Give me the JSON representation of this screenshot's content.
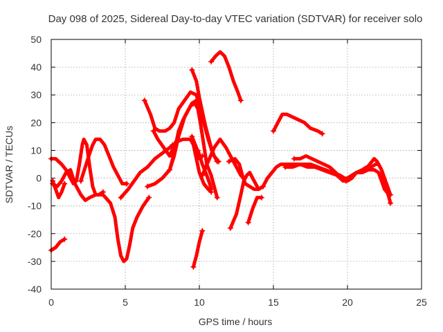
{
  "chart_data": {
    "type": "line",
    "title": "Day 098 of 2025, Sidereal Day-to-day VTEC variation (SDTVAR) for receiver solo",
    "xlabel": "GPS time / hours",
    "ylabel": "SDTVAR / TECUs",
    "xlim": [
      0,
      25
    ],
    "ylim": [
      -40,
      50
    ],
    "xticks": [
      "0",
      "5",
      "10",
      "15",
      "20",
      "25"
    ],
    "yticks": [
      "-40",
      "-30",
      "-20",
      "-10",
      "0",
      "10",
      "20",
      "30",
      "40",
      "50"
    ],
    "grid": true,
    "marker": "+",
    "color": "#ff0000",
    "series": [
      {
        "name": "s1",
        "points": [
          [
            0.0,
            7
          ],
          [
            0.3,
            7
          ],
          [
            0.7,
            5
          ],
          [
            1.0,
            3
          ],
          [
            1.3,
            0
          ],
          [
            1.5,
            -2
          ],
          [
            1.7,
            -1
          ],
          [
            1.9,
            5
          ],
          [
            2.1,
            12
          ],
          [
            2.2,
            14
          ],
          [
            2.4,
            12
          ],
          [
            2.6,
            4
          ],
          [
            2.8,
            -3
          ],
          [
            3.0,
            -6
          ],
          [
            3.2,
            -6
          ],
          [
            3.5,
            -5
          ]
        ]
      },
      {
        "name": "s2",
        "points": [
          [
            0.1,
            -2
          ],
          [
            0.4,
            -3
          ],
          [
            0.7,
            -1
          ],
          [
            1.0,
            2
          ],
          [
            1.3,
            3
          ],
          [
            1.6,
            -2
          ],
          [
            2.0,
            -6
          ],
          [
            2.3,
            -8
          ],
          [
            2.6,
            -7
          ],
          [
            3.0,
            -6
          ],
          [
            3.5,
            -6
          ],
          [
            4.0,
            -9
          ],
          [
            4.3,
            -14
          ],
          [
            4.5,
            -22
          ],
          [
            4.7,
            -28
          ],
          [
            4.9,
            -30
          ],
          [
            5.1,
            -29
          ],
          [
            5.3,
            -24
          ],
          [
            5.5,
            -18
          ],
          [
            5.8,
            -14
          ],
          [
            6.2,
            -10
          ],
          [
            6.6,
            -7
          ]
        ]
      },
      {
        "name": "s3",
        "points": [
          [
            0.0,
            -26
          ],
          [
            0.3,
            -25
          ],
          [
            0.6,
            -23
          ],
          [
            0.9,
            -22
          ]
        ]
      },
      {
        "name": "s4",
        "points": [
          [
            0.1,
            -1
          ],
          [
            0.3,
            -4
          ],
          [
            0.5,
            -7
          ],
          [
            0.7,
            -5
          ],
          [
            0.9,
            -2
          ]
        ]
      },
      {
        "name": "s5",
        "points": [
          [
            2.0,
            -1
          ],
          [
            2.3,
            4
          ],
          [
            2.6,
            9
          ],
          [
            2.8,
            12
          ],
          [
            3.0,
            14
          ],
          [
            3.3,
            14
          ],
          [
            3.6,
            12
          ],
          [
            3.9,
            8
          ],
          [
            4.2,
            4
          ],
          [
            4.5,
            1
          ],
          [
            4.8,
            -2
          ],
          [
            5.1,
            -2
          ]
        ]
      },
      {
        "name": "s6",
        "points": [
          [
            4.7,
            -7
          ],
          [
            5.2,
            -4
          ],
          [
            5.6,
            -1
          ],
          [
            6.0,
            2
          ],
          [
            6.5,
            4
          ],
          [
            7.0,
            7
          ],
          [
            7.5,
            9
          ],
          [
            8.0,
            11
          ],
          [
            8.2,
            12
          ]
        ]
      },
      {
        "name": "s7",
        "points": [
          [
            6.3,
            28
          ],
          [
            6.7,
            23
          ],
          [
            7.0,
            18
          ],
          [
            7.3,
            17
          ],
          [
            7.7,
            17
          ],
          [
            8.0,
            18
          ],
          [
            8.3,
            20
          ],
          [
            8.6,
            25
          ],
          [
            9.0,
            28
          ],
          [
            9.4,
            31
          ],
          [
            9.8,
            30
          ],
          [
            10.0,
            26
          ],
          [
            10.3,
            20
          ],
          [
            10.6,
            14
          ],
          [
            10.9,
            9
          ],
          [
            11.2,
            6
          ]
        ]
      },
      {
        "name": "s8",
        "points": [
          [
            6.9,
            17
          ],
          [
            7.2,
            14
          ],
          [
            7.6,
            11
          ],
          [
            8.0,
            8
          ],
          [
            8.4,
            13
          ],
          [
            8.9,
            14
          ],
          [
            9.4,
            14
          ],
          [
            9.6,
            12
          ],
          [
            9.8,
            7
          ],
          [
            10.0,
            2
          ],
          [
            10.3,
            -2
          ],
          [
            10.6,
            -4
          ],
          [
            10.8,
            -5
          ]
        ]
      },
      {
        "name": "s9",
        "points": [
          [
            6.5,
            -3
          ],
          [
            7.0,
            -2
          ],
          [
            7.5,
            0
          ],
          [
            8.0,
            3
          ],
          [
            8.3,
            8
          ],
          [
            8.6,
            15
          ],
          [
            9.0,
            22
          ],
          [
            9.4,
            26
          ],
          [
            9.7,
            27
          ],
          [
            9.9,
            25
          ],
          [
            10.1,
            19
          ],
          [
            10.3,
            12
          ],
          [
            10.5,
            5
          ],
          [
            10.8,
            1
          ],
          [
            11.0,
            -3
          ],
          [
            11.2,
            -7
          ]
        ]
      },
      {
        "name": "s10",
        "points": [
          [
            9.5,
            39
          ],
          [
            9.8,
            35
          ],
          [
            10.0,
            29
          ],
          [
            10.2,
            24
          ],
          [
            10.4,
            19
          ],
          [
            10.6,
            15
          ],
          [
            10.8,
            11
          ],
          [
            11.0,
            8
          ],
          [
            11.3,
            6
          ]
        ]
      },
      {
        "name": "s11",
        "points": [
          [
            8.0,
            3
          ],
          [
            8.2,
            7
          ],
          [
            8.4,
            12
          ],
          [
            8.6,
            17
          ],
          [
            8.9,
            21
          ],
          [
            9.2,
            24
          ],
          [
            9.5,
            27
          ],
          [
            9.8,
            28
          ]
        ]
      },
      {
        "name": "s12",
        "points": [
          [
            9.9,
            10
          ],
          [
            10.2,
            5
          ],
          [
            10.5,
            1
          ],
          [
            10.7,
            -2
          ],
          [
            10.8,
            -4
          ]
        ]
      },
      {
        "name": "s13",
        "points": [
          [
            10.8,
            42
          ],
          [
            11.1,
            44
          ],
          [
            11.4,
            45.5
          ],
          [
            11.7,
            44
          ],
          [
            12.0,
            40
          ],
          [
            12.3,
            35
          ],
          [
            12.6,
            31
          ],
          [
            12.8,
            28
          ]
        ]
      },
      {
        "name": "s14",
        "points": [
          [
            9.6,
            -32
          ],
          [
            9.8,
            -28
          ],
          [
            10.0,
            -23
          ],
          [
            10.2,
            -19
          ]
        ]
      },
      {
        "name": "s15",
        "points": [
          [
            9.5,
            15
          ],
          [
            9.8,
            11
          ],
          [
            10.0,
            7
          ],
          [
            10.2,
            8
          ]
        ]
      },
      {
        "name": "s16",
        "points": [
          [
            10.2,
            1
          ],
          [
            10.6,
            6
          ],
          [
            11.0,
            11
          ],
          [
            11.4,
            14
          ],
          [
            11.8,
            11
          ],
          [
            12.2,
            7
          ],
          [
            12.5,
            4
          ],
          [
            12.8,
            1
          ],
          [
            13.0,
            0
          ]
        ]
      },
      {
        "name": "s17",
        "points": [
          [
            12.0,
            6
          ],
          [
            12.4,
            7
          ],
          [
            12.7,
            5
          ],
          [
            12.9,
            1
          ],
          [
            13.1,
            -2
          ],
          [
            13.4,
            -3
          ],
          [
            13.7,
            -4
          ],
          [
            14.0,
            -4
          ],
          [
            14.3,
            -3
          ],
          [
            14.6,
            0
          ],
          [
            14.9,
            2
          ],
          [
            15.2,
            4
          ],
          [
            15.5,
            5
          ],
          [
            16.0,
            5
          ],
          [
            16.5,
            5
          ],
          [
            17.0,
            5
          ],
          [
            17.5,
            5
          ],
          [
            18.0,
            4
          ],
          [
            18.5,
            3
          ],
          [
            19.0,
            2
          ],
          [
            19.5,
            1
          ],
          [
            19.8,
            0
          ],
          [
            20.0,
            0
          ],
          [
            20.3,
            1
          ],
          [
            20.6,
            2
          ],
          [
            21.0,
            3
          ],
          [
            21.3,
            4
          ],
          [
            21.6,
            4
          ],
          [
            21.9,
            5
          ],
          [
            22.1,
            5
          ],
          [
            22.3,
            3
          ],
          [
            22.5,
            0
          ],
          [
            22.7,
            -3
          ],
          [
            22.9,
            -6
          ]
        ]
      },
      {
        "name": "s18",
        "points": [
          [
            12.1,
            -18
          ],
          [
            12.5,
            -13
          ],
          [
            12.8,
            -6
          ],
          [
            13.0,
            -1
          ],
          [
            13.2,
            1
          ],
          [
            13.4,
            2
          ],
          [
            13.6,
            0
          ],
          [
            13.8,
            -2
          ],
          [
            14.0,
            -4
          ],
          [
            14.3,
            -3
          ]
        ]
      },
      {
        "name": "s19",
        "points": [
          [
            13.3,
            -16
          ],
          [
            13.6,
            -11
          ],
          [
            13.9,
            -7
          ],
          [
            14.2,
            -7
          ]
        ]
      },
      {
        "name": "s20",
        "points": [
          [
            15.0,
            17
          ],
          [
            15.3,
            20
          ],
          [
            15.6,
            23
          ],
          [
            15.9,
            23
          ],
          [
            16.3,
            22
          ],
          [
            16.7,
            21
          ],
          [
            17.1,
            20
          ],
          [
            17.5,
            18
          ],
          [
            18.0,
            17
          ],
          [
            18.3,
            16
          ]
        ]
      },
      {
        "name": "s21",
        "points": [
          [
            15.8,
            4
          ],
          [
            16.3,
            4
          ],
          [
            16.8,
            5
          ],
          [
            17.3,
            4
          ],
          [
            17.8,
            4
          ],
          [
            18.3,
            3
          ],
          [
            18.8,
            2
          ],
          [
            19.3,
            1
          ],
          [
            19.7,
            -1
          ],
          [
            20.0,
            -1
          ],
          [
            20.3,
            0
          ],
          [
            20.6,
            2
          ],
          [
            21.0,
            2
          ],
          [
            21.4,
            3
          ],
          [
            21.8,
            3
          ],
          [
            22.1,
            2
          ],
          [
            22.3,
            -1
          ],
          [
            22.5,
            -4
          ],
          [
            22.8,
            -6
          ]
        ]
      },
      {
        "name": "s22",
        "points": [
          [
            16.4,
            7
          ],
          [
            16.8,
            7
          ],
          [
            17.2,
            8
          ],
          [
            17.6,
            7
          ],
          [
            18.0,
            6
          ],
          [
            18.4,
            5
          ],
          [
            18.8,
            4
          ],
          [
            19.2,
            2
          ],
          [
            19.6,
            0
          ],
          [
            19.9,
            -1
          ]
        ]
      },
      {
        "name": "s23",
        "points": [
          [
            21.2,
            3
          ],
          [
            21.5,
            5
          ],
          [
            21.8,
            7
          ],
          [
            22.0,
            6
          ],
          [
            22.3,
            3
          ],
          [
            22.5,
            -1
          ],
          [
            22.7,
            -5
          ],
          [
            22.9,
            -9
          ]
        ]
      }
    ]
  }
}
